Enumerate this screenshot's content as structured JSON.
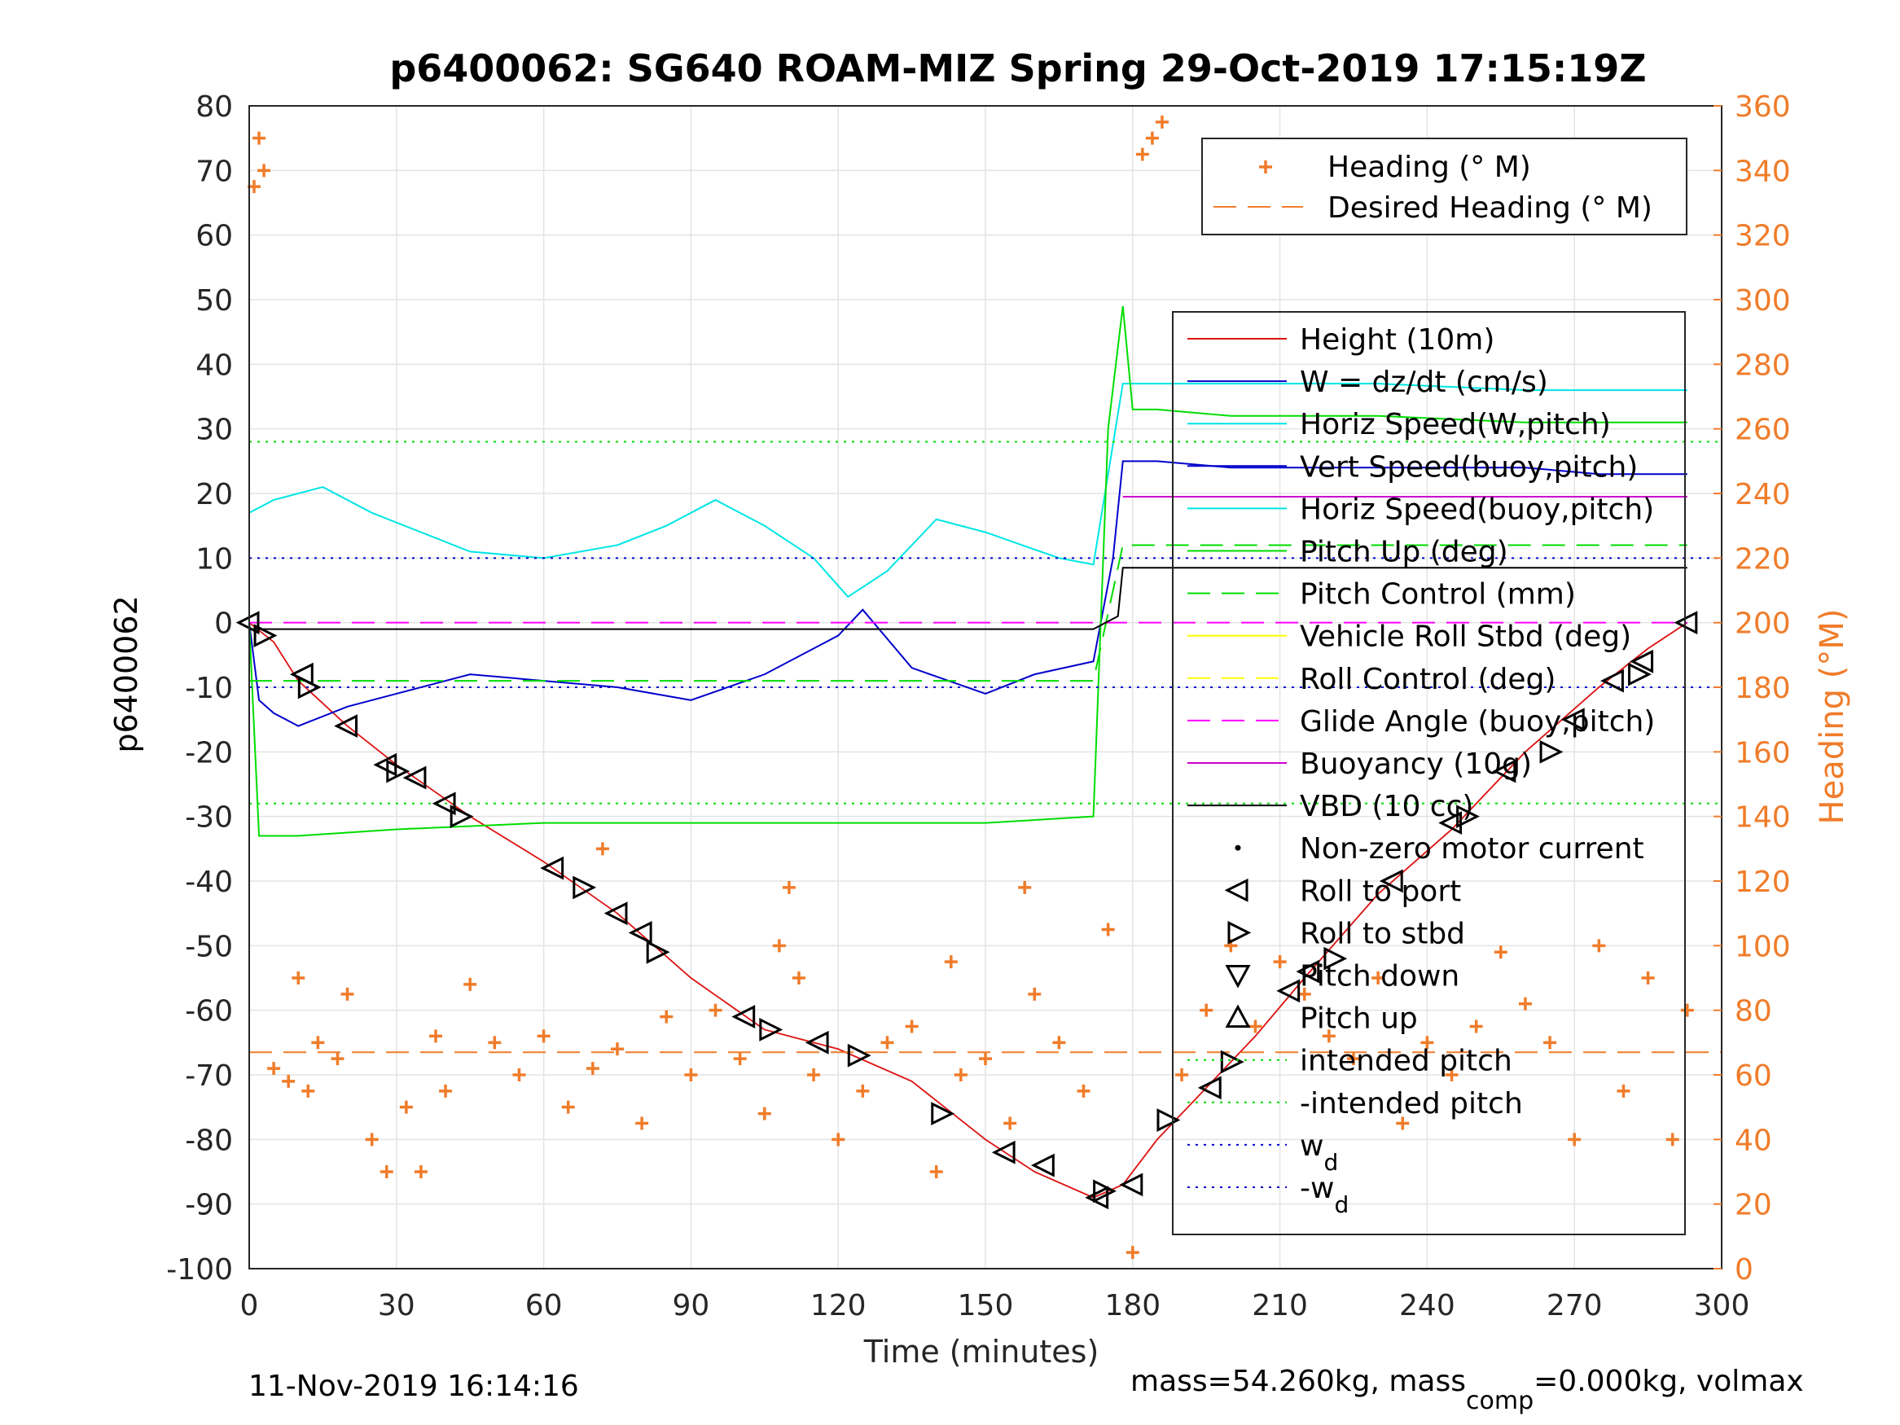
{
  "colors": {
    "right_axis": "#f07c2a",
    "height": "#dd1111",
    "w": "#0000cc",
    "horiz_speed": "#00e5e5",
    "pitch": "#00dd00",
    "roll": "#ffff00",
    "glide_angle": "#ff00ff",
    "buoyancy": "#cc00cc",
    "vbd": "#000000"
  },
  "chart_data": {
    "type": "line",
    "title": "p6400062: SG640 ROAM-MIZ Spring 29-Oct-2019 17:15:19Z",
    "xlabel": "Time (minutes)",
    "ylabel": "p6400062",
    "y2label": "Heading (°M)",
    "xlim": [
      0,
      300
    ],
    "ylim": [
      -100,
      80
    ],
    "y2lim": [
      0,
      360
    ],
    "grid": true,
    "x_ticks": [
      "0",
      "30",
      "60",
      "90",
      "120",
      "150",
      "180",
      "210",
      "240",
      "270",
      "300"
    ],
    "y_ticks": [
      "80",
      "70",
      "60",
      "50",
      "40",
      "30",
      "20",
      "10",
      "0",
      "-10",
      "-20",
      "-30",
      "-40",
      "-50",
      "-60",
      "-70",
      "-80",
      "-90",
      "-100"
    ],
    "y2_ticks": [
      "360",
      "340",
      "320",
      "300",
      "280",
      "260",
      "240",
      "220",
      "200",
      "180",
      "160",
      "140",
      "120",
      "100",
      "80",
      "60",
      "40",
      "20",
      "0"
    ],
    "legend_heading": {
      "placement": "top-right",
      "entries": [
        "Heading (° M)",
        "Desired Heading (° M)"
      ]
    },
    "legend_main": {
      "placement": "right",
      "entries": [
        "Height (10m)",
        "W = dz/dt (cm/s)",
        "Horiz Speed(W,pitch)",
        "Vert Speed(buoy,pitch)",
        "Horiz Speed(buoy,pitch)",
        "Pitch Up (deg)",
        "Pitch Control (mm)",
        "Vehicle Roll Stbd (deg)",
        "Roll Control (deg)",
        "Glide Angle (buoy,pitch)",
        "Buoyancy (10g)",
        "VBD (10 cc)",
        "Non-zero motor current",
        "Roll to port",
        "Roll to stbd",
        "Pitch down",
        "Pitch up",
        "intended pitch",
        "-intended pitch",
        "w",
        "-w"
      ],
      "subscript": "d"
    },
    "series": [
      {
        "name": "Height (10m)",
        "x": [
          0,
          5,
          10,
          20,
          30,
          45,
          60,
          75,
          90,
          105,
          120,
          135,
          150,
          160,
          172,
          178,
          185,
          195,
          205,
          215,
          230,
          245,
          260,
          275,
          285,
          293
        ],
        "y": [
          0,
          -3,
          -9,
          -16,
          -22,
          -30,
          -37,
          -45,
          -55,
          -63,
          -66,
          -71,
          -80,
          -85,
          -89,
          -87,
          -80,
          -72,
          -64,
          -55,
          -42,
          -32,
          -20,
          -10,
          -4,
          0
        ]
      },
      {
        "name": "W = dz/dt (cm/s)",
        "x": [
          0,
          2,
          5,
          10,
          20,
          30,
          45,
          60,
          75,
          90,
          105,
          120,
          125,
          135,
          150,
          160,
          172,
          176,
          178,
          185,
          200,
          215,
          230,
          245,
          260,
          275,
          285,
          293
        ],
        "y": [
          0,
          -12,
          -14,
          -16,
          -13,
          -11,
          -8,
          -9,
          -10,
          -12,
          -8,
          -2,
          2,
          -7,
          -11,
          -8,
          -6,
          10,
          25,
          25,
          24,
          24,
          24,
          24,
          24,
          23,
          23,
          23
        ]
      },
      {
        "name": "Horiz Speed(W,pitch)",
        "x": [
          0,
          5,
          10,
          15,
          25,
          35,
          45,
          60,
          75,
          85,
          95,
          105,
          115,
          122,
          130,
          140,
          150,
          165,
          172,
          178,
          185,
          200,
          215,
          230,
          260,
          293
        ],
        "y": [
          17,
          19,
          20,
          21,
          17,
          14,
          11,
          10,
          12,
          15,
          19,
          15,
          10,
          4,
          8,
          16,
          14,
          10,
          9,
          37,
          37,
          37,
          37,
          37,
          36,
          36
        ]
      },
      {
        "name": "Pitch Up (deg)",
        "x": [
          0,
          2,
          10,
          30,
          60,
          90,
          120,
          150,
          172,
          175,
          178,
          180,
          185,
          200,
          230,
          260,
          293
        ],
        "y": [
          0,
          -33,
          -33,
          -32,
          -31,
          -31,
          -31,
          -31,
          -30,
          30,
          49,
          33,
          33,
          32,
          32,
          31,
          31
        ]
      },
      {
        "name": "Pitch Control (mm)",
        "x": [
          0,
          172,
          178,
          293
        ],
        "y": [
          -9,
          -9,
          12,
          12
        ]
      },
      {
        "name": "Glide Angle (buoy,pitch)",
        "x": [
          0,
          176,
          293
        ],
        "y": [
          0,
          0,
          0
        ]
      },
      {
        "name": "Buoyancy (10g)",
        "x": [
          178,
          293
        ],
        "y": [
          19.5,
          19.5
        ]
      },
      {
        "name": "VBD (10 cc)",
        "x": [
          0,
          172,
          177,
          178,
          293
        ],
        "y": [
          -1,
          -1,
          1,
          8.5,
          8.5
        ]
      },
      {
        "name": "intended pitch",
        "x": [
          0,
          300
        ],
        "y": [
          28,
          28
        ]
      },
      {
        "name": "-intended pitch",
        "x": [
          0,
          300
        ],
        "y": [
          -28,
          -28
        ]
      },
      {
        "name": "w",
        "x": [
          0,
          300
        ],
        "y": [
          10,
          10
        ]
      },
      {
        "name": "-w",
        "x": [
          0,
          300
        ],
        "y": [
          -10,
          -10
        ]
      },
      {
        "name": "Desired Heading (° M)",
        "axis": "right",
        "x": [
          0,
          300
        ],
        "y": [
          67,
          67
        ]
      },
      {
        "name": "Heading (° M)",
        "axis": "right",
        "x": [
          1,
          2,
          3,
          5,
          8,
          10,
          12,
          14,
          18,
          20,
          25,
          28,
          32,
          35,
          38,
          40,
          45,
          50,
          55,
          60,
          65,
          70,
          72,
          75,
          80,
          85,
          90,
          95,
          100,
          105,
          108,
          110,
          112,
          115,
          120,
          125,
          130,
          135,
          140,
          143,
          145,
          150,
          155,
          158,
          160,
          165,
          170,
          175,
          180,
          182,
          184,
          186,
          190,
          195,
          200,
          205,
          210,
          215,
          220,
          225,
          230,
          235,
          240,
          245,
          250,
          255,
          260,
          265,
          270,
          275,
          280,
          285,
          290,
          293
        ],
        "y": [
          335,
          350,
          340,
          62,
          58,
          90,
          55,
          70,
          65,
          85,
          40,
          30,
          50,
          30,
          72,
          55,
          88,
          70,
          60,
          72,
          50,
          62,
          130,
          68,
          45,
          78,
          60,
          80,
          65,
          48,
          100,
          118,
          90,
          60,
          40,
          55,
          70,
          75,
          30,
          95,
          60,
          65,
          45,
          118,
          85,
          70,
          55,
          105,
          5,
          345,
          350,
          355,
          60,
          80,
          100,
          75,
          95,
          85,
          72,
          65,
          90,
          45,
          70,
          60,
          75,
          98,
          82,
          70,
          40,
          100,
          55,
          90,
          40,
          80
        ]
      }
    ],
    "markers": [
      {
        "name": "Roll to port",
        "x": [
          0,
          11,
          20,
          28,
          34,
          40,
          62,
          75,
          80,
          101,
          116,
          154,
          162,
          173,
          180,
          196,
          212,
          216,
          233,
          245,
          256,
          270,
          278,
          284,
          293
        ],
        "y": [
          0,
          -8,
          -16,
          -22,
          -24,
          -28,
          -38,
          -45,
          -48,
          -61,
          -65,
          -82,
          -84,
          -89,
          -87,
          -72,
          -57,
          -54,
          -40,
          -31,
          -23,
          -15,
          -9,
          -6,
          0
        ]
      },
      {
        "name": "Roll to stbd",
        "x": [
          3,
          12,
          30,
          43,
          68,
          83,
          106,
          124,
          141,
          174,
          187,
          200,
          221,
          248,
          265,
          283
        ],
        "y": [
          -2,
          -10,
          -23,
          -30,
          -41,
          -51,
          -63,
          -67,
          -76,
          -88,
          -77,
          -68,
          -52,
          -30,
          -20,
          -8
        ]
      }
    ],
    "annotations": [
      {
        "text": "11-Nov-2019 16:14:16",
        "placement": "bottom-left"
      },
      {
        "text": "mass=54.260kg, mass",
        "sub": "comp",
        "tail": "=0.000kg, volmax",
        "placement": "bottom-right"
      }
    ]
  }
}
